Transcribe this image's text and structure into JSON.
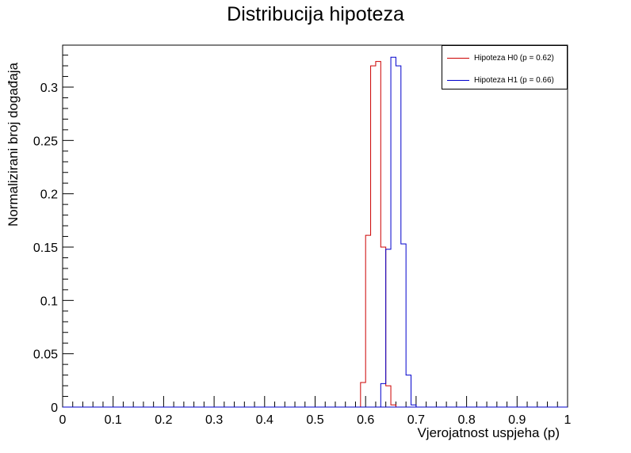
{
  "chart_data": {
    "type": "histogram",
    "title": "Distribucija hipoteza",
    "xlabel": "Vjerojatnost uspjeha (p)",
    "ylabel": "Normalizirani broj događaja",
    "xlim": [
      0,
      1
    ],
    "ylim": [
      0,
      0.34
    ],
    "x_ticks": [
      "0",
      "0.1",
      "0.2",
      "0.3",
      "0.4",
      "0.5",
      "0.6",
      "0.7",
      "0.8",
      "0.9",
      "1"
    ],
    "y_ticks": [
      "0",
      "0.05",
      "0.1",
      "0.15",
      "0.2",
      "0.25",
      "0.3"
    ],
    "legend_position": "top-right",
    "series": [
      {
        "name": "Hipoteza H0 (p = 0.62)",
        "color": "#cc0000",
        "bins": [
          {
            "x0": 0.57,
            "x1": 0.58,
            "value": 0.0
          },
          {
            "x0": 0.58,
            "x1": 0.59,
            "value": 0.0
          },
          {
            "x0": 0.59,
            "x1": 0.6,
            "value": 0.023
          },
          {
            "x0": 0.6,
            "x1": 0.61,
            "value": 0.161
          },
          {
            "x0": 0.61,
            "x1": 0.62,
            "value": 0.32
          },
          {
            "x0": 0.62,
            "x1": 0.63,
            "value": 0.324
          },
          {
            "x0": 0.63,
            "x1": 0.64,
            "value": 0.15
          },
          {
            "x0": 0.64,
            "x1": 0.65,
            "value": 0.02
          },
          {
            "x0": 0.65,
            "x1": 0.66,
            "value": 0.002
          }
        ]
      },
      {
        "name": "Hipoteza H1 (p = 0.66)",
        "color": "#0000cc",
        "bins": [
          {
            "x0": 0.62,
            "x1": 0.63,
            "value": 0.0
          },
          {
            "x0": 0.63,
            "x1": 0.64,
            "value": 0.022
          },
          {
            "x0": 0.64,
            "x1": 0.65,
            "value": 0.148
          },
          {
            "x0": 0.65,
            "x1": 0.66,
            "value": 0.328
          },
          {
            "x0": 0.66,
            "x1": 0.67,
            "value": 0.32
          },
          {
            "x0": 0.67,
            "x1": 0.68,
            "value": 0.153
          },
          {
            "x0": 0.68,
            "x1": 0.69,
            "value": 0.03
          },
          {
            "x0": 0.69,
            "x1": 0.7,
            "value": 0.002
          }
        ]
      }
    ]
  }
}
